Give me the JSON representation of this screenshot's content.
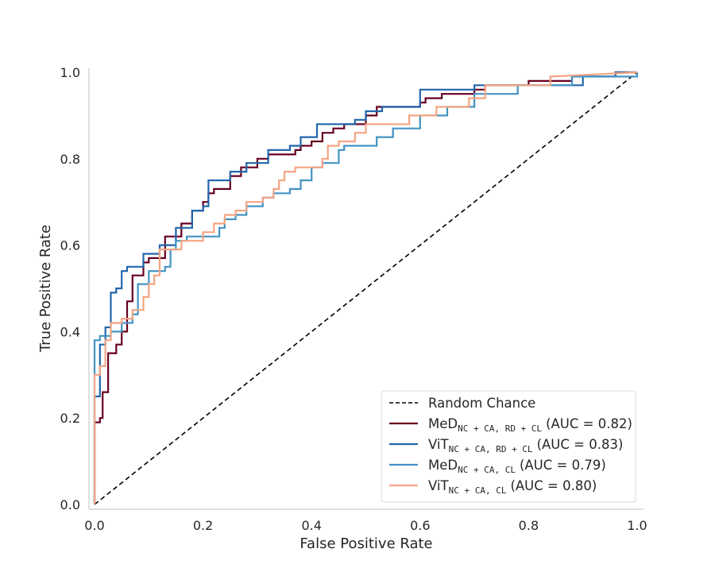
{
  "chart_data": {
    "type": "line",
    "xlabel": "False Positive Rate",
    "ylabel": "True Positive Rate",
    "xlim": [
      0,
      1
    ],
    "ylim": [
      0,
      1
    ],
    "xticks": [
      "0.0",
      "0.2",
      "0.4",
      "0.6",
      "0.8",
      "1.0"
    ],
    "yticks": [
      "0.0",
      "0.2",
      "0.4",
      "0.6",
      "0.8",
      "1.0"
    ],
    "grid": false,
    "legend_position": "lower-right",
    "reference": {
      "name": "Random Chance",
      "style": "dashed",
      "color": "#000000",
      "points": [
        [
          0,
          0
        ],
        [
          1,
          1
        ]
      ]
    },
    "series": [
      {
        "name": "MeD",
        "subscript": "NC + CA, RD + CL",
        "auc_text": "(AUC = 0.82)",
        "color": "#67001f",
        "points": [
          [
            0,
            0
          ],
          [
            0,
            0.19
          ],
          [
            0.01,
            0.19
          ],
          [
            0.01,
            0.2
          ],
          [
            0.015,
            0.2
          ],
          [
            0.015,
            0.26
          ],
          [
            0.025,
            0.26
          ],
          [
            0.025,
            0.35
          ],
          [
            0.04,
            0.35
          ],
          [
            0.04,
            0.37
          ],
          [
            0.05,
            0.37
          ],
          [
            0.05,
            0.4
          ],
          [
            0.06,
            0.4
          ],
          [
            0.06,
            0.47
          ],
          [
            0.07,
            0.47
          ],
          [
            0.07,
            0.53
          ],
          [
            0.09,
            0.53
          ],
          [
            0.09,
            0.56
          ],
          [
            0.1,
            0.56
          ],
          [
            0.1,
            0.57
          ],
          [
            0.13,
            0.57
          ],
          [
            0.13,
            0.62
          ],
          [
            0.16,
            0.62
          ],
          [
            0.16,
            0.65
          ],
          [
            0.18,
            0.65
          ],
          [
            0.18,
            0.68
          ],
          [
            0.2,
            0.68
          ],
          [
            0.2,
            0.7
          ],
          [
            0.21,
            0.7
          ],
          [
            0.21,
            0.72
          ],
          [
            0.22,
            0.72
          ],
          [
            0.22,
            0.73
          ],
          [
            0.25,
            0.73
          ],
          [
            0.25,
            0.76
          ],
          [
            0.27,
            0.76
          ],
          [
            0.27,
            0.78
          ],
          [
            0.3,
            0.78
          ],
          [
            0.3,
            0.8
          ],
          [
            0.32,
            0.8
          ],
          [
            0.32,
            0.81
          ],
          [
            0.37,
            0.81
          ],
          [
            0.37,
            0.82
          ],
          [
            0.38,
            0.82
          ],
          [
            0.38,
            0.83
          ],
          [
            0.4,
            0.83
          ],
          [
            0.4,
            0.84
          ],
          [
            0.42,
            0.84
          ],
          [
            0.42,
            0.86
          ],
          [
            0.44,
            0.86
          ],
          [
            0.44,
            0.87
          ],
          [
            0.46,
            0.87
          ],
          [
            0.46,
            0.88
          ],
          [
            0.5,
            0.88
          ],
          [
            0.5,
            0.9
          ],
          [
            0.52,
            0.9
          ],
          [
            0.52,
            0.92
          ],
          [
            0.6,
            0.92
          ],
          [
            0.6,
            0.93
          ],
          [
            0.61,
            0.93
          ],
          [
            0.61,
            0.94
          ],
          [
            0.64,
            0.94
          ],
          [
            0.64,
            0.95
          ],
          [
            0.7,
            0.95
          ],
          [
            0.7,
            0.96
          ],
          [
            0.72,
            0.96
          ],
          [
            0.72,
            0.97
          ],
          [
            0.8,
            0.97
          ],
          [
            0.8,
            0.98
          ],
          [
            0.88,
            0.98
          ],
          [
            0.88,
            0.99
          ],
          [
            0.96,
            0.99
          ],
          [
            0.96,
            1
          ],
          [
            1,
            1
          ]
        ]
      },
      {
        "name": "ViT",
        "subscript": "NC + CA, RD + CL",
        "auc_text": "(AUC = 0.83)",
        "color": "#2166ac",
        "points": [
          [
            0,
            0
          ],
          [
            0,
            0.25
          ],
          [
            0.01,
            0.25
          ],
          [
            0.01,
            0.37
          ],
          [
            0.02,
            0.37
          ],
          [
            0.02,
            0.41
          ],
          [
            0.03,
            0.41
          ],
          [
            0.03,
            0.49
          ],
          [
            0.04,
            0.49
          ],
          [
            0.04,
            0.5
          ],
          [
            0.05,
            0.5
          ],
          [
            0.05,
            0.54
          ],
          [
            0.06,
            0.54
          ],
          [
            0.06,
            0.55
          ],
          [
            0.09,
            0.55
          ],
          [
            0.09,
            0.58
          ],
          [
            0.12,
            0.58
          ],
          [
            0.12,
            0.6
          ],
          [
            0.15,
            0.6
          ],
          [
            0.15,
            0.64
          ],
          [
            0.18,
            0.64
          ],
          [
            0.18,
            0.68
          ],
          [
            0.2,
            0.68
          ],
          [
            0.2,
            0.69
          ],
          [
            0.21,
            0.69
          ],
          [
            0.21,
            0.75
          ],
          [
            0.25,
            0.75
          ],
          [
            0.25,
            0.77
          ],
          [
            0.28,
            0.77
          ],
          [
            0.28,
            0.79
          ],
          [
            0.32,
            0.79
          ],
          [
            0.32,
            0.82
          ],
          [
            0.36,
            0.82
          ],
          [
            0.36,
            0.83
          ],
          [
            0.38,
            0.83
          ],
          [
            0.38,
            0.85
          ],
          [
            0.41,
            0.85
          ],
          [
            0.41,
            0.88
          ],
          [
            0.48,
            0.88
          ],
          [
            0.48,
            0.89
          ],
          [
            0.5,
            0.89
          ],
          [
            0.5,
            0.91
          ],
          [
            0.53,
            0.91
          ],
          [
            0.53,
            0.92
          ],
          [
            0.6,
            0.92
          ],
          [
            0.6,
            0.96
          ],
          [
            0.7,
            0.96
          ],
          [
            0.7,
            0.97
          ],
          [
            0.9,
            0.97
          ],
          [
            0.9,
            0.99
          ],
          [
            0.96,
            0.99
          ],
          [
            0.96,
            1
          ],
          [
            1,
            1
          ]
        ]
      },
      {
        "name": "MeD",
        "subscript": "NC + CA, CL",
        "auc_text": "(AUC = 0.79)",
        "color": "#4393c3",
        "points": [
          [
            0,
            0
          ],
          [
            0,
            0.38
          ],
          [
            0.01,
            0.38
          ],
          [
            0.01,
            0.39
          ],
          [
            0.03,
            0.39
          ],
          [
            0.03,
            0.4
          ],
          [
            0.05,
            0.4
          ],
          [
            0.05,
            0.42
          ],
          [
            0.07,
            0.42
          ],
          [
            0.07,
            0.44
          ],
          [
            0.08,
            0.44
          ],
          [
            0.08,
            0.51
          ],
          [
            0.1,
            0.51
          ],
          [
            0.1,
            0.54
          ],
          [
            0.13,
            0.54
          ],
          [
            0.13,
            0.55
          ],
          [
            0.14,
            0.55
          ],
          [
            0.14,
            0.59
          ],
          [
            0.15,
            0.59
          ],
          [
            0.15,
            0.61
          ],
          [
            0.17,
            0.61
          ],
          [
            0.17,
            0.62
          ],
          [
            0.23,
            0.62
          ],
          [
            0.23,
            0.64
          ],
          [
            0.24,
            0.64
          ],
          [
            0.24,
            0.66
          ],
          [
            0.26,
            0.66
          ],
          [
            0.26,
            0.67
          ],
          [
            0.28,
            0.67
          ],
          [
            0.28,
            0.69
          ],
          [
            0.31,
            0.69
          ],
          [
            0.31,
            0.71
          ],
          [
            0.33,
            0.71
          ],
          [
            0.33,
            0.72
          ],
          [
            0.36,
            0.72
          ],
          [
            0.36,
            0.73
          ],
          [
            0.38,
            0.73
          ],
          [
            0.38,
            0.75
          ],
          [
            0.4,
            0.75
          ],
          [
            0.4,
            0.78
          ],
          [
            0.42,
            0.78
          ],
          [
            0.42,
            0.79
          ],
          [
            0.45,
            0.79
          ],
          [
            0.45,
            0.82
          ],
          [
            0.46,
            0.82
          ],
          [
            0.46,
            0.83
          ],
          [
            0.52,
            0.83
          ],
          [
            0.52,
            0.85
          ],
          [
            0.55,
            0.85
          ],
          [
            0.55,
            0.87
          ],
          [
            0.6,
            0.87
          ],
          [
            0.6,
            0.9
          ],
          [
            0.65,
            0.9
          ],
          [
            0.65,
            0.92
          ],
          [
            0.7,
            0.92
          ],
          [
            0.7,
            0.95
          ],
          [
            0.78,
            0.95
          ],
          [
            0.78,
            0.97
          ],
          [
            0.88,
            0.97
          ],
          [
            0.88,
            0.99
          ],
          [
            1,
            0.99
          ],
          [
            1,
            1
          ]
        ]
      },
      {
        "name": "ViT",
        "subscript": "NC + CA, CL",
        "auc_text": "(AUC = 0.80)",
        "color": "#f4a582",
        "points": [
          [
            0,
            0
          ],
          [
            0,
            0.3
          ],
          [
            0.01,
            0.3
          ],
          [
            0.01,
            0.32
          ],
          [
            0.02,
            0.32
          ],
          [
            0.02,
            0.38
          ],
          [
            0.03,
            0.38
          ],
          [
            0.03,
            0.42
          ],
          [
            0.05,
            0.42
          ],
          [
            0.05,
            0.43
          ],
          [
            0.07,
            0.43
          ],
          [
            0.07,
            0.45
          ],
          [
            0.09,
            0.45
          ],
          [
            0.09,
            0.48
          ],
          [
            0.1,
            0.48
          ],
          [
            0.1,
            0.51
          ],
          [
            0.11,
            0.51
          ],
          [
            0.11,
            0.53
          ],
          [
            0.12,
            0.53
          ],
          [
            0.12,
            0.59
          ],
          [
            0.16,
            0.59
          ],
          [
            0.16,
            0.61
          ],
          [
            0.2,
            0.61
          ],
          [
            0.2,
            0.63
          ],
          [
            0.22,
            0.63
          ],
          [
            0.22,
            0.65
          ],
          [
            0.24,
            0.65
          ],
          [
            0.24,
            0.67
          ],
          [
            0.26,
            0.67
          ],
          [
            0.26,
            0.68
          ],
          [
            0.28,
            0.68
          ],
          [
            0.28,
            0.7
          ],
          [
            0.31,
            0.7
          ],
          [
            0.31,
            0.71
          ],
          [
            0.33,
            0.71
          ],
          [
            0.33,
            0.73
          ],
          [
            0.34,
            0.73
          ],
          [
            0.34,
            0.75
          ],
          [
            0.35,
            0.75
          ],
          [
            0.35,
            0.77
          ],
          [
            0.37,
            0.77
          ],
          [
            0.37,
            0.78
          ],
          [
            0.42,
            0.78
          ],
          [
            0.42,
            0.8
          ],
          [
            0.43,
            0.8
          ],
          [
            0.43,
            0.83
          ],
          [
            0.45,
            0.83
          ],
          [
            0.45,
            0.84
          ],
          [
            0.48,
            0.84
          ],
          [
            0.48,
            0.86
          ],
          [
            0.5,
            0.86
          ],
          [
            0.5,
            0.88
          ],
          [
            0.58,
            0.88
          ],
          [
            0.58,
            0.9
          ],
          [
            0.63,
            0.9
          ],
          [
            0.63,
            0.92
          ],
          [
            0.69,
            0.92
          ],
          [
            0.69,
            0.94
          ],
          [
            0.72,
            0.94
          ],
          [
            0.72,
            0.97
          ],
          [
            0.84,
            0.97
          ],
          [
            0.84,
            0.99
          ],
          [
            1,
            1
          ]
        ]
      }
    ]
  }
}
